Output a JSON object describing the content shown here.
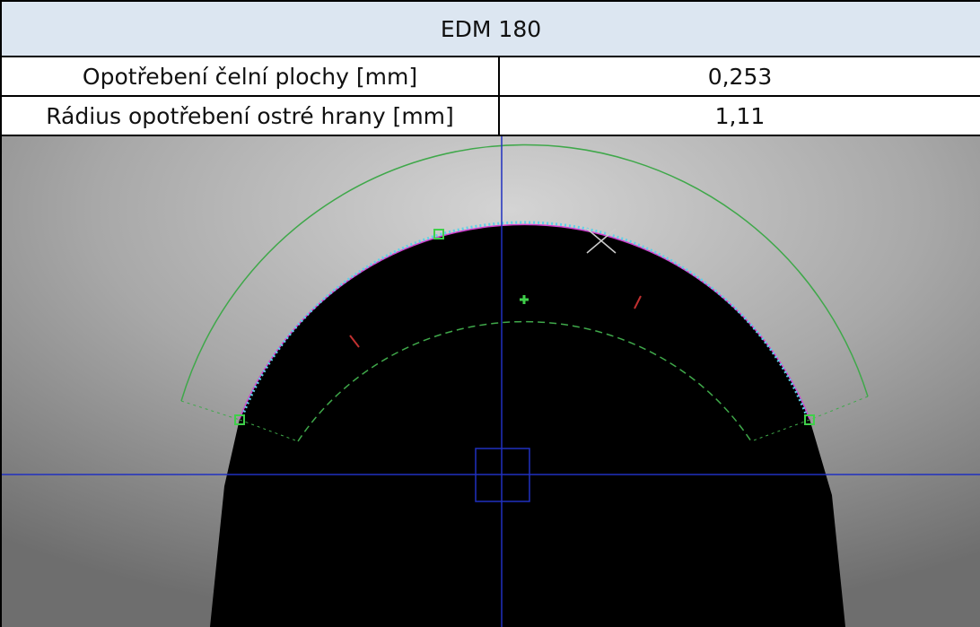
{
  "table": {
    "title": "EDM 180",
    "rows": [
      [
        "Opotřebení čelní plochy [mm]",
        "0,253"
      ],
      [
        "Rádius opotřebení ostré hrany [mm]",
        "1,11"
      ]
    ]
  }
}
